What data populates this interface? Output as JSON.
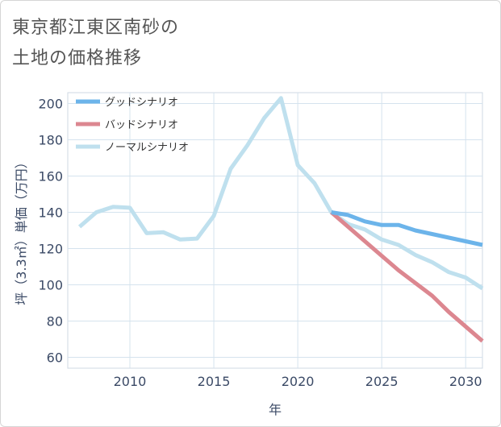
{
  "title_lines": [
    "東京都江東区南砂の",
    "土地の価格推移"
  ],
  "chart_data": {
    "type": "line",
    "xlabel": "年",
    "ylabel": "坪（3.3㎡）単価（万円）",
    "xlim": [
      2006.3,
      2031
    ],
    "ylim": [
      54,
      206
    ],
    "xticks": [
      2010,
      2015,
      2020,
      2025,
      2030
    ],
    "yticks": [
      60,
      80,
      100,
      120,
      140,
      160,
      180,
      200
    ],
    "legend_position": "top-left",
    "series": [
      {
        "name": "グッドシナリオ",
        "color": "#6cb4ea",
        "x": [
          2022,
          2023,
          2024,
          2025,
          2026,
          2027,
          2028,
          2029,
          2030,
          2031
        ],
        "y": [
          140,
          138.5,
          135,
          133,
          133,
          130,
          128,
          126,
          124,
          122
        ]
      },
      {
        "name": "バッドシナリオ",
        "color": "#dc8790",
        "x": [
          2022,
          2023,
          2024,
          2025,
          2026,
          2027,
          2028,
          2029,
          2030,
          2031
        ],
        "y": [
          140,
          132,
          124,
          116,
          108,
          101,
          94,
          85,
          77,
          69
        ]
      },
      {
        "name": "ノーマルシナリオ",
        "color": "#bfe0ee",
        "x": [
          2007,
          2008,
          2009,
          2010,
          2011,
          2012,
          2013,
          2014,
          2015,
          2016,
          2017,
          2018,
          2019,
          2020,
          2021,
          2022,
          2023,
          2024,
          2025,
          2026,
          2027,
          2028,
          2029,
          2030,
          2031
        ],
        "y": [
          132,
          140,
          143,
          142.5,
          128.5,
          129,
          125,
          125.5,
          138,
          164,
          177,
          192,
          203,
          166,
          156,
          140,
          133.5,
          130.5,
          125,
          122,
          116.5,
          112.5,
          107,
          104,
          98
        ]
      }
    ]
  }
}
